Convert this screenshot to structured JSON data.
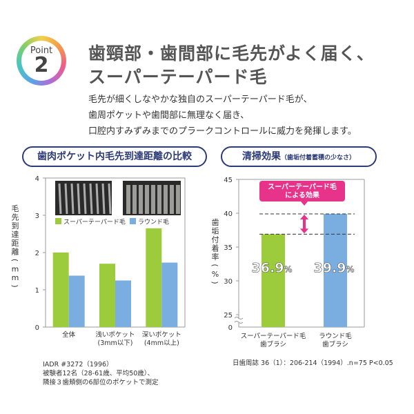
{
  "badge": {
    "point_label": "Point",
    "number": "2"
  },
  "heading": {
    "line1": "歯頸部・歯間部に毛先がよく届く、",
    "line2": "スーパーテーパード毛"
  },
  "description": [
    "毛先が細くしなやかな独自のスーパーテーパード毛が、",
    "歯周ポケットや歯間部に無理なく届き、",
    "口腔内すみずみまでのプラークコントロールに威力を発揮します。"
  ],
  "colors": {
    "green": "#9ccb3c",
    "blue": "#7aaee0",
    "navy": "#2d3a78",
    "pink": "#e8338a",
    "bristle_photo": "#2a2a2a"
  },
  "chart_data": [
    {
      "type": "bar",
      "title": "歯肉ポケット内毛先到達距離の比較",
      "ylabel": "毛先到達距離（mm）",
      "ylim": [
        0,
        4
      ],
      "yticks": [
        "0",
        "1",
        "2",
        "3",
        "4"
      ],
      "categories": [
        "全体",
        "浅いポケット\n(3mm以下)",
        "深いポケット\n(4mm以上)"
      ],
      "series": [
        {
          "name": "スーパーテーパード毛",
          "values": [
            2.0,
            1.7,
            2.65
          ]
        },
        {
          "name": "ラウンド毛",
          "values": [
            1.38,
            1.25,
            1.73
          ]
        }
      ],
      "legend": "top-left",
      "notes": [
        "IADR #3272（1996）",
        "被験者12名（28-61歳、平均50歳）、",
        "隣接３歯頬側の6部位のポケットで測定"
      ]
    },
    {
      "type": "bar",
      "title": "清掃効果",
      "subtitle": "（歯垢付着蓄積の少なさ）",
      "ylabel": "歯垢付着率（%）",
      "ylim": [
        25,
        45
      ],
      "yticks": [
        "25",
        "30",
        "35",
        "40",
        "45"
      ],
      "categories": [
        "スーパーテーパード毛\n歯ブラシ",
        "ラウンド毛\n歯ブラシ"
      ],
      "values": [
        36.9,
        39.9
      ],
      "data_labels": [
        "36.9",
        "39.9"
      ],
      "data_label_unit": "%",
      "annotation": "スーパーテーパード毛\nによる効果",
      "source": "日歯周誌 36（1）：206-214（1994）.n=75 P<0.05"
    }
  ]
}
